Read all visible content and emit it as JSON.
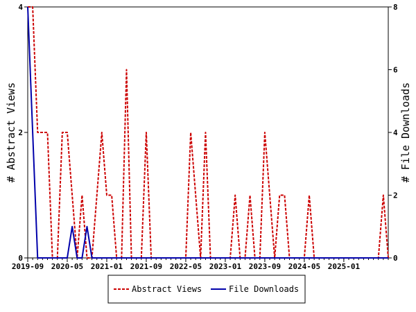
{
  "chart_data": {
    "type": "line",
    "x": [
      "2019-09",
      "2019-10",
      "2019-11",
      "2019-12",
      "2020-01",
      "2020-02",
      "2020-03",
      "2020-04",
      "2020-05",
      "2020-06",
      "2020-07",
      "2020-08",
      "2020-09",
      "2020-10",
      "2020-11",
      "2020-12",
      "2021-01",
      "2021-02",
      "2021-03",
      "2021-04",
      "2021-05",
      "2021-06",
      "2021-07",
      "2021-08",
      "2021-09",
      "2021-10",
      "2021-11",
      "2021-12",
      "2022-01",
      "2022-02",
      "2022-03",
      "2022-04",
      "2022-05",
      "2022-06",
      "2022-07",
      "2022-08",
      "2022-09",
      "2022-10",
      "2022-11",
      "2022-12",
      "2023-01",
      "2023-02",
      "2023-03",
      "2023-04",
      "2023-05",
      "2023-06",
      "2023-07",
      "2023-08",
      "2023-09",
      "2023-10",
      "2023-11",
      "2023-12",
      "2024-01",
      "2024-02",
      "2024-03",
      "2024-04",
      "2024-05",
      "2024-06",
      "2024-07",
      "2024-08",
      "2024-09",
      "2024-10",
      "2024-11",
      "2024-12",
      "2025-01",
      "2025-02",
      "2025-03",
      "2025-04",
      "2025-05",
      "2025-06",
      "2025-07",
      "2025-08",
      "2025-09",
      "2025-10"
    ],
    "xticks": [
      "2019-09",
      "2020-05",
      "2021-01",
      "2021-09",
      "2022-05",
      "2023-01",
      "2023-09",
      "2024-05",
      "2025-01"
    ],
    "series": [
      {
        "name": "Abstract Views",
        "axis": "left",
        "color": "#cc0000",
        "style": "dashed",
        "values": [
          4,
          4,
          2,
          2,
          2,
          0,
          0,
          2,
          2,
          1,
          0,
          1,
          0,
          0,
          1,
          2,
          1,
          1,
          0,
          0,
          3,
          0,
          0,
          0,
          2,
          0,
          0,
          0,
          0,
          0,
          0,
          0,
          0,
          2,
          1,
          0,
          2,
          0,
          0,
          0,
          0,
          0,
          1,
          0,
          0,
          1,
          0,
          0,
          2,
          1,
          0,
          1,
          1,
          0,
          0,
          0,
          0,
          1,
          0,
          0,
          0,
          0,
          0,
          0,
          0,
          0,
          0,
          0,
          0,
          0,
          0,
          0,
          1,
          0
        ]
      },
      {
        "name": "File Downloads",
        "axis": "right",
        "color": "#0000aa",
        "style": "solid",
        "values": [
          8,
          4,
          0,
          0,
          0,
          0,
          0,
          0,
          0,
          1,
          0,
          0,
          1,
          0,
          0,
          0,
          0,
          0,
          0,
          0,
          0,
          0,
          0,
          0,
          0,
          0,
          0,
          0,
          0,
          0,
          0,
          0,
          0,
          0,
          0,
          0,
          0,
          0,
          0,
          0,
          0,
          0,
          0,
          0,
          0,
          0,
          0,
          0,
          0,
          0,
          0,
          0,
          0,
          0,
          0,
          0,
          0,
          0,
          0,
          0,
          0,
          0,
          0,
          0,
          0,
          0,
          0,
          0,
          0,
          0,
          0,
          0,
          0,
          0
        ]
      }
    ],
    "ylabel": "# Abstract Views",
    "ylabel_right": "# File Downloads",
    "ylim": [
      0,
      4
    ],
    "ylim_right": [
      0,
      8
    ],
    "yticks": [
      "0",
      "2",
      "4"
    ],
    "yticks_right": [
      "0",
      "2",
      "4",
      "6",
      "8"
    ],
    "legend": {
      "placement": "bottom",
      "entries": [
        "Abstract Views",
        "File Downloads"
      ]
    }
  }
}
